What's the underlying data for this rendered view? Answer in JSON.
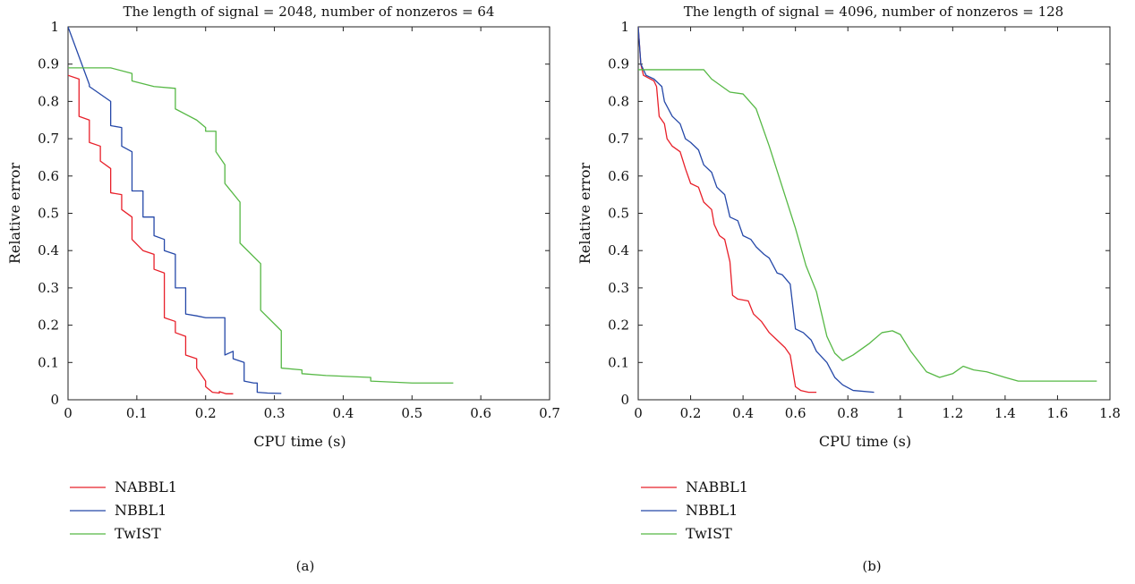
{
  "chart_data": [
    {
      "type": "line",
      "panel_label": "(a)",
      "title": "The length of signal = 2048, number of nonzeros = 64",
      "xlabel": "CPU time (s)",
      "ylabel": "Relative error",
      "xlim": [
        0,
        0.7
      ],
      "ylim": [
        0,
        1
      ],
      "xticks": [
        0,
        0.1,
        0.2,
        0.3,
        0.4,
        0.5,
        0.6,
        0.7
      ],
      "xticklabels": [
        "0",
        "0.1",
        "0.2",
        "0.3",
        "0.4",
        "0.5",
        "0.6",
        "0.7"
      ],
      "yticks": [
        0,
        0.1,
        0.2,
        0.3,
        0.4,
        0.5,
        0.6,
        0.7,
        0.8,
        0.9,
        1
      ],
      "yticklabels": [
        "0",
        "0.1",
        "0.2",
        "0.3",
        "0.4",
        "0.5",
        "0.6",
        "0.7",
        "0.8",
        "0.9",
        "1"
      ],
      "legend_position": "below",
      "series": [
        {
          "name": "NABBL1",
          "color": "#e8202a",
          "points": [
            [
              0,
              0.87
            ],
            [
              0.016,
              0.86
            ],
            [
              0.016,
              0.76
            ],
            [
              0.031,
              0.75
            ],
            [
              0.031,
              0.69
            ],
            [
              0.047,
              0.68
            ],
            [
              0.047,
              0.64
            ],
            [
              0.062,
              0.62
            ],
            [
              0.062,
              0.555
            ],
            [
              0.078,
              0.55
            ],
            [
              0.078,
              0.51
            ],
            [
              0.093,
              0.49
            ],
            [
              0.093,
              0.43
            ],
            [
              0.109,
              0.4
            ],
            [
              0.125,
              0.39
            ],
            [
              0.125,
              0.35
            ],
            [
              0.14,
              0.34
            ],
            [
              0.14,
              0.22
            ],
            [
              0.156,
              0.21
            ],
            [
              0.156,
              0.18
            ],
            [
              0.171,
              0.17
            ],
            [
              0.171,
              0.12
            ],
            [
              0.187,
              0.11
            ],
            [
              0.187,
              0.085
            ],
            [
              0.2,
              0.05
            ],
            [
              0.2,
              0.035
            ],
            [
              0.21,
              0.02
            ],
            [
              0.22,
              0.018
            ],
            [
              0.22,
              0.022
            ],
            [
              0.23,
              0.016
            ],
            [
              0.24,
              0.016
            ]
          ]
        },
        {
          "name": "NBBL1",
          "color": "#2548a8",
          "points": [
            [
              0,
              1.0
            ],
            [
              0.031,
              0.845
            ],
            [
              0.031,
              0.84
            ],
            [
              0.062,
              0.8
            ],
            [
              0.062,
              0.735
            ],
            [
              0.078,
              0.73
            ],
            [
              0.078,
              0.68
            ],
            [
              0.093,
              0.665
            ],
            [
              0.093,
              0.56
            ],
            [
              0.109,
              0.56
            ],
            [
              0.109,
              0.49
            ],
            [
              0.125,
              0.49
            ],
            [
              0.125,
              0.44
            ],
            [
              0.14,
              0.43
            ],
            [
              0.14,
              0.4
            ],
            [
              0.156,
              0.39
            ],
            [
              0.156,
              0.3
            ],
            [
              0.171,
              0.3
            ],
            [
              0.171,
              0.23
            ],
            [
              0.187,
              0.225
            ],
            [
              0.2,
              0.22
            ],
            [
              0.228,
              0.22
            ],
            [
              0.228,
              0.12
            ],
            [
              0.24,
              0.13
            ],
            [
              0.24,
              0.11
            ],
            [
              0.256,
              0.1
            ],
            [
              0.256,
              0.05
            ],
            [
              0.27,
              0.045
            ],
            [
              0.275,
              0.045
            ],
            [
              0.275,
              0.02
            ],
            [
              0.29,
              0.018
            ],
            [
              0.31,
              0.017
            ]
          ]
        },
        {
          "name": "TwIST",
          "color": "#56b845",
          "points": [
            [
              0,
              0.89
            ],
            [
              0.062,
              0.89
            ],
            [
              0.093,
              0.875
            ],
            [
              0.093,
              0.855
            ],
            [
              0.125,
              0.84
            ],
            [
              0.156,
              0.835
            ],
            [
              0.156,
              0.78
            ],
            [
              0.187,
              0.75
            ],
            [
              0.2,
              0.73
            ],
            [
              0.2,
              0.72
            ],
            [
              0.215,
              0.72
            ],
            [
              0.215,
              0.665
            ],
            [
              0.228,
              0.63
            ],
            [
              0.228,
              0.58
            ],
            [
              0.25,
              0.53
            ],
            [
              0.25,
              0.42
            ],
            [
              0.28,
              0.365
            ],
            [
              0.28,
              0.24
            ],
            [
              0.31,
              0.185
            ],
            [
              0.31,
              0.085
            ],
            [
              0.34,
              0.08
            ],
            [
              0.34,
              0.07
            ],
            [
              0.375,
              0.065
            ],
            [
              0.44,
              0.06
            ],
            [
              0.44,
              0.05
            ],
            [
              0.5,
              0.045
            ],
            [
              0.56,
              0.045
            ]
          ]
        }
      ]
    },
    {
      "type": "line",
      "panel_label": "(b)",
      "title": "The length of signal = 4096, number of nonzeros = 128",
      "xlabel": "CPU time (s)",
      "ylabel": "Relative error",
      "xlim": [
        0,
        1.8
      ],
      "ylim": [
        0,
        1
      ],
      "xticks": [
        0,
        0.2,
        0.4,
        0.6,
        0.8,
        1,
        1.2,
        1.4,
        1.6,
        1.8
      ],
      "xticklabels": [
        "0",
        "0.2",
        "0.4",
        "0.6",
        "0.8",
        "1",
        "1.2",
        "1.4",
        "1.6",
        "1.8"
      ],
      "yticks": [
        0,
        0.1,
        0.2,
        0.3,
        0.4,
        0.5,
        0.6,
        0.7,
        0.8,
        0.9,
        1
      ],
      "yticklabels": [
        "0",
        "0.1",
        "0.2",
        "0.3",
        "0.4",
        "0.5",
        "0.6",
        "0.7",
        "0.8",
        "0.9",
        "1"
      ],
      "legend_position": "below",
      "series": [
        {
          "name": "NABBL1",
          "color": "#e8202a",
          "points": [
            [
              0,
              1.0
            ],
            [
              0.01,
              0.9
            ],
            [
              0.02,
              0.87
            ],
            [
              0.06,
              0.855
            ],
            [
              0.07,
              0.84
            ],
            [
              0.08,
              0.76
            ],
            [
              0.1,
              0.74
            ],
            [
              0.11,
              0.7
            ],
            [
              0.13,
              0.68
            ],
            [
              0.16,
              0.665
            ],
            [
              0.18,
              0.62
            ],
            [
              0.2,
              0.58
            ],
            [
              0.23,
              0.57
            ],
            [
              0.25,
              0.53
            ],
            [
              0.28,
              0.51
            ],
            [
              0.29,
              0.47
            ],
            [
              0.31,
              0.44
            ],
            [
              0.33,
              0.43
            ],
            [
              0.35,
              0.37
            ],
            [
              0.36,
              0.28
            ],
            [
              0.38,
              0.27
            ],
            [
              0.42,
              0.265
            ],
            [
              0.44,
              0.23
            ],
            [
              0.47,
              0.21
            ],
            [
              0.5,
              0.18
            ],
            [
              0.53,
              0.16
            ],
            [
              0.56,
              0.14
            ],
            [
              0.58,
              0.12
            ],
            [
              0.6,
              0.035
            ],
            [
              0.62,
              0.025
            ],
            [
              0.65,
              0.02
            ],
            [
              0.68,
              0.02
            ]
          ]
        },
        {
          "name": "NBBL1",
          "color": "#2548a8",
          "points": [
            [
              0,
              1.0
            ],
            [
              0.01,
              0.9
            ],
            [
              0.03,
              0.87
            ],
            [
              0.06,
              0.86
            ],
            [
              0.09,
              0.84
            ],
            [
              0.1,
              0.8
            ],
            [
              0.13,
              0.76
            ],
            [
              0.16,
              0.74
            ],
            [
              0.18,
              0.7
            ],
            [
              0.2,
              0.69
            ],
            [
              0.23,
              0.67
            ],
            [
              0.25,
              0.63
            ],
            [
              0.28,
              0.61
            ],
            [
              0.3,
              0.57
            ],
            [
              0.33,
              0.55
            ],
            [
              0.35,
              0.49
            ],
            [
              0.38,
              0.48
            ],
            [
              0.4,
              0.44
            ],
            [
              0.43,
              0.43
            ],
            [
              0.45,
              0.41
            ],
            [
              0.48,
              0.39
            ],
            [
              0.5,
              0.38
            ],
            [
              0.53,
              0.34
            ],
            [
              0.55,
              0.335
            ],
            [
              0.58,
              0.31
            ],
            [
              0.6,
              0.19
            ],
            [
              0.63,
              0.18
            ],
            [
              0.66,
              0.16
            ],
            [
              0.68,
              0.13
            ],
            [
              0.72,
              0.1
            ],
            [
              0.75,
              0.06
            ],
            [
              0.78,
              0.04
            ],
            [
              0.82,
              0.025
            ],
            [
              0.9,
              0.02
            ]
          ]
        },
        {
          "name": "TwIST",
          "color": "#56b845",
          "points": [
            [
              0,
              0.885
            ],
            [
              0.25,
              0.885
            ],
            [
              0.28,
              0.86
            ],
            [
              0.32,
              0.84
            ],
            [
              0.35,
              0.825
            ],
            [
              0.4,
              0.82
            ],
            [
              0.45,
              0.78
            ],
            [
              0.5,
              0.68
            ],
            [
              0.55,
              0.57
            ],
            [
              0.6,
              0.46
            ],
            [
              0.64,
              0.36
            ],
            [
              0.68,
              0.29
            ],
            [
              0.72,
              0.17
            ],
            [
              0.75,
              0.125
            ],
            [
              0.78,
              0.105
            ],
            [
              0.82,
              0.12
            ],
            [
              0.88,
              0.15
            ],
            [
              0.93,
              0.18
            ],
            [
              0.97,
              0.185
            ],
            [
              1.0,
              0.175
            ],
            [
              1.04,
              0.13
            ],
            [
              1.1,
              0.075
            ],
            [
              1.15,
              0.06
            ],
            [
              1.2,
              0.07
            ],
            [
              1.24,
              0.09
            ],
            [
              1.28,
              0.08
            ],
            [
              1.33,
              0.075
            ],
            [
              1.4,
              0.06
            ],
            [
              1.45,
              0.05
            ],
            [
              1.6,
              0.05
            ],
            [
              1.75,
              0.05
            ]
          ]
        }
      ]
    }
  ]
}
